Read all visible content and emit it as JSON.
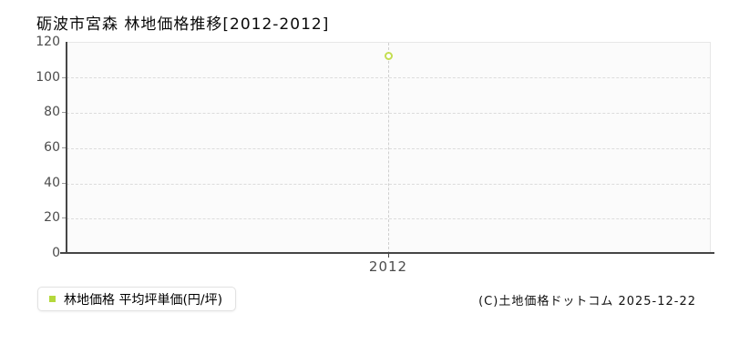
{
  "header": {
    "title": "砺波市宮森 林地価格推移[2012-2012]"
  },
  "chart": {
    "y_ticks": [
      "120",
      "100",
      "80",
      "60",
      "40",
      "20",
      "0"
    ],
    "x_ticks": [
      "2012"
    ]
  },
  "legend": {
    "label": "林地価格 平均坪単価(円/坪)"
  },
  "footer": {
    "copyright": "(C)土地価格ドットコム 2025-12-22"
  },
  "colors": {
    "accent": "#b4d83c",
    "marker_stroke": "#c4de51",
    "axis": "#464646",
    "grid": "#dcdcdc",
    "plot_background": "#fbfbfb"
  },
  "chart_data": {
    "type": "scatter",
    "title": "砺波市宮森 林地価格推移[2012-2012]",
    "x": [
      2012
    ],
    "categories": [
      "2012"
    ],
    "series": [
      {
        "name": "林地価格 平均坪単価(円/坪)",
        "values": [
          112
        ]
      }
    ],
    "xlabel": "",
    "ylabel": "",
    "ylim": [
      0,
      120
    ],
    "y_tick_step": 20,
    "grid": "dashed horizontal gridlines + dashed vertical line at each x tick",
    "legend_position": "bottom-left below chart",
    "marker": "hollow-circle"
  }
}
